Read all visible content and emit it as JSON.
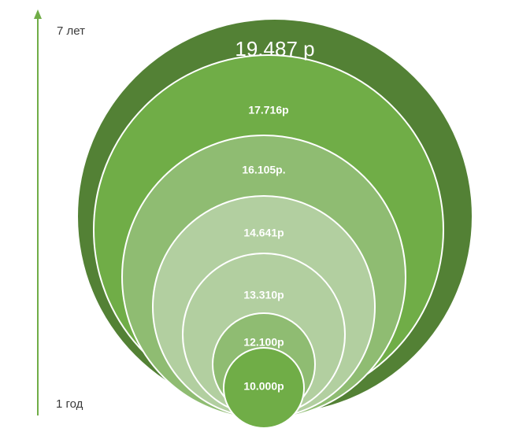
{
  "axis": {
    "top_label": "7 лет",
    "bottom_label": "1 год",
    "color": "#70ad47"
  },
  "rings": [
    {
      "label": "19.487 р",
      "fill": "#538135"
    },
    {
      "label": "17.716р",
      "fill": "#70ad47"
    },
    {
      "label": "16.105р.",
      "fill": "#8fbc72"
    },
    {
      "label": "14.641р",
      "fill": "#b2cfa0"
    },
    {
      "label": "13.310р",
      "fill": "#b2cfa0"
    },
    {
      "label": "12.100р",
      "fill": "#8fbc72"
    },
    {
      "label": "10.000р",
      "fill": "#70ad47"
    }
  ],
  "colors": {
    "ring_stroke": "#ffffff",
    "text": "#ffffff"
  }
}
